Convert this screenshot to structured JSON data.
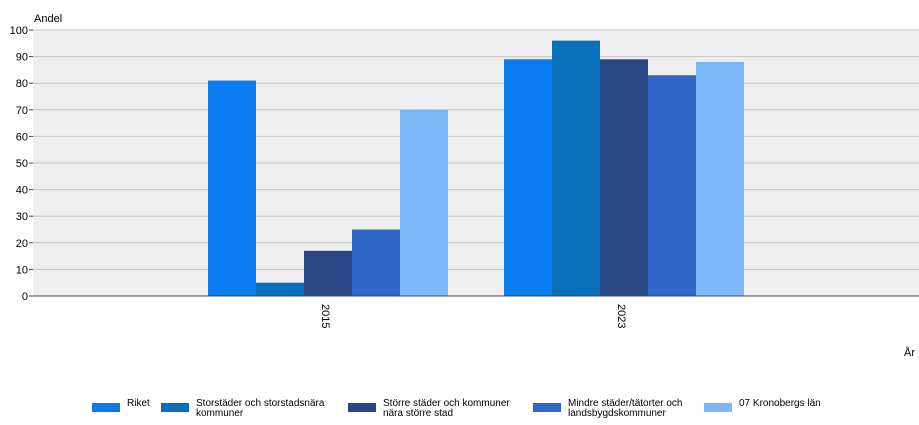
{
  "chart_data": {
    "type": "bar",
    "title": "",
    "ylabel": "Andel",
    "xlabel": "År",
    "ylim": [
      0,
      100
    ],
    "yticks": [
      0,
      10,
      20,
      30,
      40,
      50,
      60,
      70,
      80,
      90,
      100
    ],
    "grid": true,
    "legend_position": "bottom",
    "categories": [
      "2015",
      "2023"
    ],
    "series": [
      {
        "name": "Riket",
        "color": "#0a7cf0",
        "values": [
          81,
          89
        ]
      },
      {
        "name": "Storstäder och storstadsnära kommuner",
        "color": "#0870b8",
        "values": [
          5,
          96
        ]
      },
      {
        "name": "Större städer och kommuner nära större stad",
        "color": "#284784",
        "values": [
          17,
          89
        ]
      },
      {
        "name": "Mindre städer/tätorter och landsbygdskommuner",
        "color": "#2f66c8",
        "values": [
          25,
          83
        ]
      },
      {
        "name": "07 Kronobergs län",
        "color": "#7cb7f8",
        "values": [
          70,
          88
        ]
      }
    ]
  }
}
